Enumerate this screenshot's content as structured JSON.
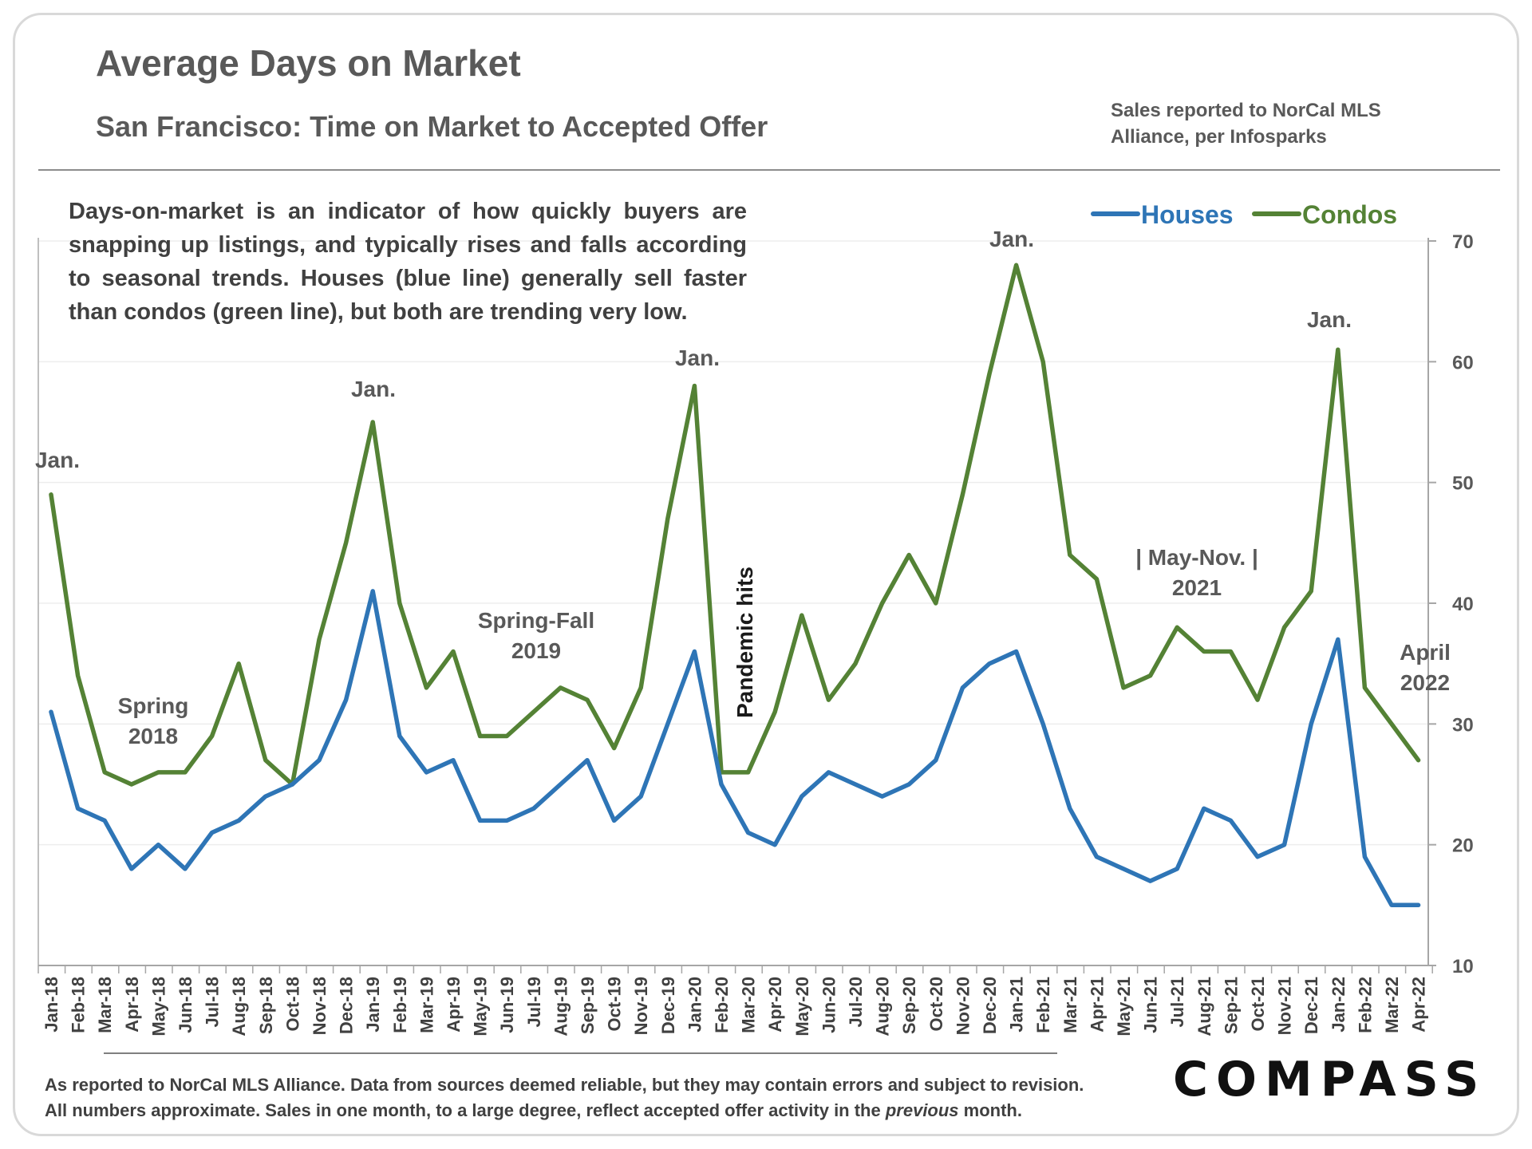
{
  "title": "Average Days on Market",
  "subtitle": "San Francisco: Time on Market to Accepted Offer",
  "source_note": "Sales reported to NorCal MLS Alliance, per Infosparks",
  "description": "Days-on-market is an indicator of how quickly buyers are snapping up listings, and typically rises and falls according to seasonal trends. Houses (blue line) generally sell faster than condos (green line), but both are trending very low.",
  "footer": {
    "line1": "As reported to NorCal MLS Alliance. Data from sources deemed reliable, but they may contain errors and subject to revision.",
    "line2_before": "All numbers approximate. Sales in one month, to a large degree, reflect accepted offer activity in the ",
    "line2_em": "previous",
    "line2_after": " month."
  },
  "logo": "COMPASS",
  "colors": {
    "houses": "#2e75b6",
    "condos": "#548235",
    "annotation": "#595959"
  },
  "chart_data": {
    "type": "line",
    "title": "Average Days on Market",
    "ylim": [
      10,
      70
    ],
    "yticks": [
      10,
      20,
      30,
      40,
      50,
      60,
      70
    ],
    "y_axis_side": "right",
    "legend_position": "top-right",
    "grid": true,
    "x": [
      "Jan-18",
      "Feb-18",
      "Mar-18",
      "Apr-18",
      "May-18",
      "Jun-18",
      "Jul-18",
      "Aug-18",
      "Sep-18",
      "Oct-18",
      "Nov-18",
      "Dec-18",
      "Jan-19",
      "Feb-19",
      "Mar-19",
      "Apr-19",
      "May-19",
      "Jun-19",
      "Jul-19",
      "Aug-19",
      "Sep-19",
      "Oct-19",
      "Nov-19",
      "Dec-19",
      "Jan-20",
      "Feb-20",
      "Mar-20",
      "Apr-20",
      "May-20",
      "Jun-20",
      "Jul-20",
      "Aug-20",
      "Sep-20",
      "Oct-20",
      "Nov-20",
      "Dec-20",
      "Jan-21",
      "Feb-21",
      "Mar-21",
      "Apr-21",
      "May-21",
      "Jun-21",
      "Jul-21",
      "Aug-21",
      "Sep-21",
      "Oct-21",
      "Nov-21",
      "Dec-21",
      "Jan-22",
      "Feb-22",
      "Mar-22",
      "Apr-22"
    ],
    "series": [
      {
        "name": "Houses",
        "color": "#2e75b6",
        "values": [
          31,
          23,
          22,
          18,
          20,
          18,
          21,
          22,
          24,
          25,
          27,
          32,
          41,
          29,
          26,
          27,
          22,
          22,
          23,
          25,
          27,
          22,
          24,
          30,
          36,
          25,
          21,
          20,
          24,
          26,
          25,
          24,
          25,
          27,
          33,
          35,
          36,
          30,
          23,
          19,
          18,
          17,
          18,
          23,
          22,
          19,
          20,
          30,
          37,
          19,
          15,
          15
        ]
      },
      {
        "name": "Condos",
        "color": "#548235",
        "values": [
          49,
          34,
          26,
          25,
          26,
          26,
          29,
          35,
          27,
          25,
          37,
          45,
          55,
          40,
          33,
          36,
          29,
          29,
          31,
          33,
          32,
          28,
          33,
          47,
          58,
          26,
          26,
          31,
          39,
          32,
          35,
          40,
          44,
          40,
          49,
          59,
          68,
          60,
          44,
          42,
          33,
          34,
          38,
          36,
          36,
          32,
          38,
          41,
          61,
          33,
          30,
          27
        ]
      }
    ],
    "annotations": [
      {
        "text": "Jan.",
        "index": 0
      },
      {
        "text": "Jan.",
        "index": 12
      },
      {
        "text": "Jan.",
        "index": 24
      },
      {
        "text": "Jan.",
        "index": 36
      },
      {
        "text": "Jan.",
        "index": 48
      },
      {
        "text": "Spring 2018"
      },
      {
        "text": "Spring-Fall 2019"
      },
      {
        "text": "Pandemic hits"
      },
      {
        "text": "| May-Nov. | 2021"
      },
      {
        "text": "April 2022"
      }
    ]
  }
}
